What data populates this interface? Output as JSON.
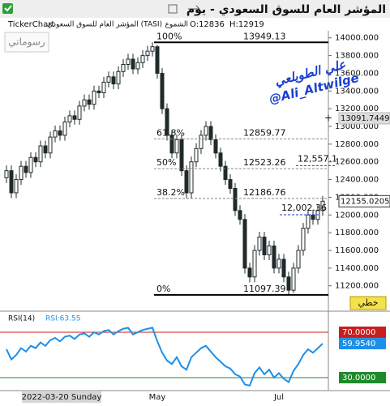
{
  "chart_data": {
    "type": "candlestick",
    "title": "المؤشر العام للسوق السعودي - يوم",
    "info": [
      "TickerChart",
      "المؤشر العام للسوق السعودي (TASI)",
      "الشموع",
      "O:12836",
      "H:12919"
    ],
    "button": "رسوماتي",
    "line_tool": "خطي",
    "watermark": [
      "علي الطويلعي",
      "@Ali_Altwilge"
    ],
    "cursor_date": "2022-03-20 Sunday",
    "color": "#1f2a2a",
    "categories": [
      null,
      null,
      null,
      null,
      null,
      null,
      null,
      null,
      null,
      null,
      null,
      null,
      null,
      null,
      null,
      null,
      null,
      null,
      null,
      null,
      null,
      null,
      null,
      null,
      null,
      null,
      null,
      null,
      null,
      null,
      null,
      "May",
      null,
      null,
      null,
      null,
      null,
      null,
      null,
      null,
      null,
      null,
      null,
      null,
      null,
      null,
      null,
      null,
      null,
      null,
      null,
      null,
      null,
      null,
      null,
      null,
      "Jul",
      null,
      null,
      null,
      null,
      null,
      null,
      null,
      null,
      null
    ],
    "open": [
      12420,
      12500,
      12250,
      12400,
      12550,
      12480,
      12650,
      12600,
      12780,
      12700,
      12880,
      12950,
      12900,
      13050,
      13120,
      13080,
      13230,
      13300,
      13250,
      13400,
      13380,
      13500,
      13560,
      13480,
      13620,
      13700,
      13760,
      13650,
      13720,
      13800,
      13850,
      13900,
      13600,
      13200,
      12900,
      12700,
      12850,
      12500,
      12250,
      12600,
      12750,
      12900,
      13000,
      12850,
      12700,
      12550,
      12400,
      12300,
      12050,
      11950,
      11400,
      11300,
      11600,
      11750,
      11550,
      11650,
      11400,
      11500,
      11300,
      11150,
      11400,
      11600,
      11850,
      12000,
      11950,
      12050
    ],
    "high": [
      12560,
      12560,
      12460,
      12610,
      12610,
      12710,
      12710,
      12840,
      12840,
      12940,
      13010,
      13010,
      13110,
      13180,
      13180,
      13290,
      13360,
      13360,
      13460,
      13460,
      13560,
      13620,
      13620,
      13680,
      13760,
      13820,
      13820,
      13780,
      13860,
      13910,
      13949.13,
      13920,
      13660,
      13260,
      12960,
      12910,
      12910,
      12560,
      12660,
      12810,
      12960,
      13060,
      13060,
      12910,
      12760,
      12610,
      12460,
      12360,
      12110,
      12010,
      11460,
      11660,
      11810,
      11810,
      11710,
      11710,
      11560,
      11560,
      11360,
      11460,
      11660,
      11910,
      12060,
      12060,
      12110,
      12215
    ],
    "low": [
      12360,
      12190,
      12190,
      12340,
      12420,
      12420,
      12540,
      12540,
      12640,
      12640,
      12820,
      12840,
      12840,
      12990,
      13020,
      13020,
      13170,
      13190,
      13190,
      13320,
      13320,
      13440,
      13420,
      13420,
      13560,
      13640,
      13590,
      13590,
      13660,
      13740,
      13790,
      13540,
      13140,
      12840,
      12640,
      12640,
      12440,
      12190,
      12190,
      12540,
      12690,
      12840,
      12790,
      12640,
      12490,
      12340,
      12240,
      11990,
      11890,
      11340,
      11240,
      11240,
      11540,
      11490,
      11490,
      11340,
      11340,
      11240,
      11097.39,
      11120,
      11340,
      11540,
      11790,
      11890,
      11890,
      11990
    ],
    "close": [
      12500,
      12250,
      12400,
      12550,
      12480,
      12650,
      12600,
      12780,
      12700,
      12880,
      12950,
      12900,
      13050,
      13120,
      13080,
      13230,
      13300,
      13250,
      13400,
      13380,
      13500,
      13560,
      13480,
      13620,
      13700,
      13760,
      13650,
      13720,
      13800,
      13850,
      13900,
      13600,
      13200,
      12900,
      12700,
      12850,
      12500,
      12250,
      12600,
      12750,
      12900,
      13000,
      12850,
      12700,
      12550,
      12400,
      12300,
      12050,
      11950,
      11400,
      11300,
      11600,
      11750,
      11550,
      11650,
      11400,
      11500,
      11300,
      11150,
      11400,
      11600,
      11850,
      12000,
      11950,
      12050,
      12155
    ],
    "ylim": [
      10950,
      14080
    ],
    "yticks": [
      {
        "value": 14000,
        "label": "14000.000"
      },
      {
        "value": 13800,
        "label": "13800.000"
      },
      {
        "value": 13600,
        "label": "13600.000"
      },
      {
        "value": 13400,
        "label": "13400.000"
      },
      {
        "value": 13200,
        "label": "13200.000"
      },
      {
        "value": 13000,
        "label": "13000.000"
      },
      {
        "value": 12800,
        "label": "12800.000"
      },
      {
        "value": 12600,
        "label": "12600.000"
      },
      {
        "value": 12400,
        "label": "12400.000"
      },
      {
        "value": 12200,
        "label": "12200.000"
      },
      {
        "value": 12000,
        "label": "12000.000"
      },
      {
        "value": 11800,
        "label": "11800.000"
      },
      {
        "value": 11600,
        "label": "11600.000"
      },
      {
        "value": 11400,
        "label": "11400.000"
      },
      {
        "value": 11200,
        "label": "11200.000"
      }
    ],
    "markers": [
      13091.7449,
      12155.0205
    ],
    "fib": [
      {
        "label": "100%",
        "value": 13949.13
      },
      {
        "label": "61.8%",
        "value": 12859.77
      },
      {
        "label": "50%",
        "value": 12523.26
      },
      {
        "label": "38.2%",
        "value": 12186.76
      },
      {
        "label": "0%",
        "value": 11097.39
      }
    ],
    "annotations": [
      {
        "value": 12557.1,
        "label": "12,557.1"
      },
      {
        "value": 12002.36,
        "label": "12,002.36"
      }
    ],
    "rsi": {
      "title": "RSI(14)",
      "current": "RSI:63.55",
      "color": "#1e8fe8",
      "values": [
        55,
        46,
        50,
        56,
        53,
        58,
        56,
        61,
        58,
        63,
        65,
        62,
        66,
        67,
        64,
        68,
        69,
        66,
        70,
        68,
        71,
        72,
        68,
        71,
        73,
        74,
        68,
        70,
        72,
        73,
        74,
        62,
        52,
        45,
        42,
        48,
        40,
        37,
        48,
        52,
        56,
        58,
        53,
        48,
        44,
        40,
        38,
        33,
        31,
        24,
        23,
        34,
        39,
        33,
        37,
        30,
        34,
        29,
        26,
        36,
        42,
        50,
        55,
        52,
        56,
        59.954
      ],
      "ylim": [
        18.6,
        87.1
      ],
      "levels": [
        {
          "value": 70,
          "label": "70.0000",
          "color": "#c81e1e"
        },
        {
          "value": 30,
          "label": "30.0000",
          "color": "#1f8a2a"
        }
      ],
      "last": {
        "value": 59.954,
        "label": "59.9540"
      }
    }
  }
}
